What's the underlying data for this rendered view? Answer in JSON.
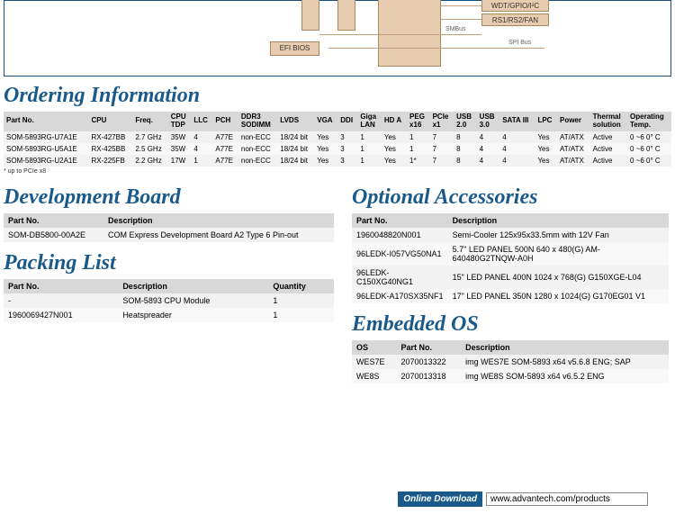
{
  "diagram": {
    "efi_bios": "EFI BIOS",
    "wdt": "WDT/GPIO/I²C",
    "rs": "RS1/RS2/FAN",
    "smbus": "SMBus",
    "spibus": "SPI Bus"
  },
  "ordering": {
    "title": "Ordering Information",
    "headers": [
      "Part No.",
      "CPU",
      "Freq.",
      "CPU TDP",
      "LLC",
      "PCH",
      "DDR3 SODIMM",
      "LVDS",
      "VGA",
      "DDI",
      "Giga LAN",
      "HD A",
      "PEG x16",
      "PCIe x1",
      "USB 2.0",
      "USB 3.0",
      "SATA III",
      "LPC",
      "Power",
      "Thermal solution",
      "Operating Temp."
    ],
    "rows": [
      [
        "SOM-5893RG-U7A1E",
        "RX-427BB",
        "2.7 GHz",
        "35W",
        "4",
        "A77E",
        "non-ECC",
        "18/24 bit",
        "Yes",
        "3",
        "1",
        "Yes",
        "1",
        "7",
        "8",
        "4",
        "4",
        "Yes",
        "AT/ATX",
        "Active",
        "0 ~6 0° C"
      ],
      [
        "SOM-5893RG-U5A1E",
        "RX-425BB",
        "2.5 GHz",
        "35W",
        "4",
        "A77E",
        "non-ECC",
        "18/24 bit",
        "Yes",
        "3",
        "1",
        "Yes",
        "1",
        "7",
        "8",
        "4",
        "4",
        "Yes",
        "AT/ATX",
        "Active",
        "0 ~6 0° C"
      ],
      [
        "SOM-5893RG-U2A1E",
        "RX-225FB",
        "2.2 GHz",
        "17W",
        "1",
        "A77E",
        "non-ECC",
        "18/24 bit",
        "Yes",
        "3",
        "1",
        "Yes",
        "1*",
        "7",
        "8",
        "4",
        "4",
        "Yes",
        "AT/ATX",
        "Active",
        "0 ~6 0° C"
      ]
    ],
    "footnote": "* up to PCIe x8"
  },
  "dev_board": {
    "title": "Development Board",
    "headers": [
      "Part No.",
      "Description"
    ],
    "rows": [
      [
        "SOM-DB5800-00A2E",
        "COM Express Development Board A2 Type 6 Pin-out"
      ]
    ]
  },
  "packing": {
    "title": "Packing List",
    "headers": [
      "Part No.",
      "Description",
      "Quantity"
    ],
    "rows": [
      [
        "-",
        "SOM-5893 CPU Module",
        "1"
      ],
      [
        "1960069427N001",
        "Heatspreader",
        "1"
      ]
    ]
  },
  "accessories": {
    "title": "Optional Accessories",
    "headers": [
      "Part No.",
      "Description"
    ],
    "rows": [
      [
        "1960048820N001",
        "Semi-Cooler 125x95x33.5mm with 12V Fan"
      ],
      [
        "96LEDK-I057VG50NA1",
        "5.7\" LED PANEL 500N 640 x 480(G) AM-640480G2TNQW-A0H"
      ],
      [
        "96LEDK-C150XG40NG1",
        "15\" LED PANEL 400N 1024 x 768(G) G150XGE-L04"
      ],
      [
        "96LEDK-A170SX35NF1",
        "17\" LED PANEL 350N 1280 x 1024(G) G170EG01 V1"
      ]
    ]
  },
  "embedded_os": {
    "title": "Embedded OS",
    "headers": [
      "OS",
      "Part No.",
      "Description"
    ],
    "rows": [
      [
        "WES7E",
        "2070013322",
        "img WES7E SOM-5893 x64 v5.6.8 ENG; SAP"
      ],
      [
        "WE8S",
        "2070013318",
        "img WE8S SOM-5893 x64 v6.5.2 ENG"
      ]
    ]
  },
  "download": {
    "label": "Online Download",
    "url": "www.advantech.com/products"
  }
}
